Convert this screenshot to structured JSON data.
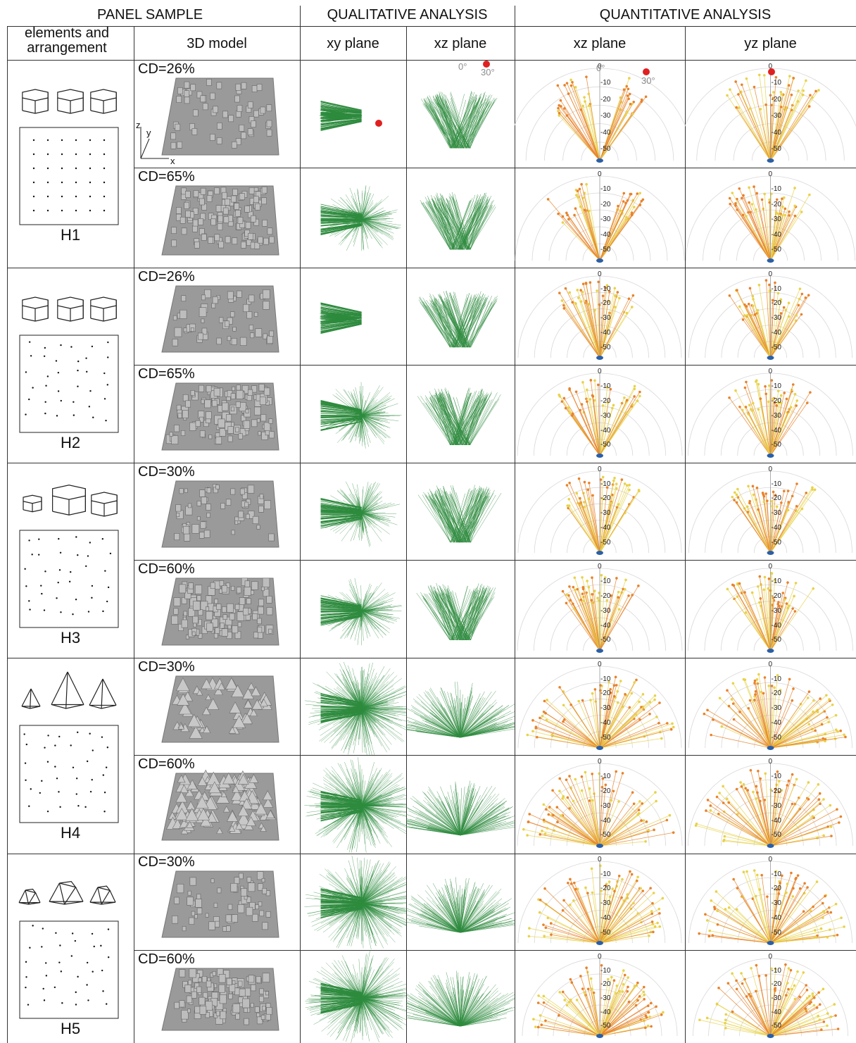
{
  "headers": {
    "panel_sample": "PANEL SAMPLE",
    "qualitative": "QUALITATIVE ANALYSIS",
    "quantitative": "QUANTITATIVE ANALYSIS",
    "elements": "elements and arrangement",
    "model3d": "3D model",
    "xy_plane": "xy plane",
    "xz_plane_q": "xz plane",
    "xz_plane": "xz plane",
    "yz_plane": "yz plane"
  },
  "axis_triad": {
    "z": "z",
    "y": "y",
    "x": "x"
  },
  "angle_marks": {
    "zero": "0°",
    "thirty": "30°"
  },
  "polar_ticks": [
    "0",
    "-10",
    "-20",
    "-30",
    "-40",
    "-50"
  ],
  "colors": {
    "green": "#2e8b3e",
    "red": "#e02020",
    "orange": "#e8822a",
    "yellow": "#e8d24a",
    "blue": "#2a5fa8",
    "gray": "#8c8c8c"
  },
  "groups": [
    {
      "label": "H1",
      "shape": "hexagon-uniform",
      "arrangement": "grid",
      "samples": [
        {
          "cd": "CD=26%"
        },
        {
          "cd": "CD=65%"
        }
      ]
    },
    {
      "label": "H2",
      "shape": "hexagon-uniform",
      "arrangement": "random",
      "samples": [
        {
          "cd": "CD=26%"
        },
        {
          "cd": "CD=65%"
        }
      ]
    },
    {
      "label": "H3",
      "shape": "hexagon-mixed",
      "arrangement": "random",
      "samples": [
        {
          "cd": "CD=30%"
        },
        {
          "cd": "CD=60%"
        }
      ]
    },
    {
      "label": "H4",
      "shape": "pyramid-mixed",
      "arrangement": "random",
      "samples": [
        {
          "cd": "CD=30%"
        },
        {
          "cd": "CD=60%"
        }
      ]
    },
    {
      "label": "H5",
      "shape": "truncated-mixed",
      "arrangement": "random",
      "samples": [
        {
          "cd": "CD=30%"
        },
        {
          "cd": "CD=60%"
        }
      ]
    }
  ]
}
